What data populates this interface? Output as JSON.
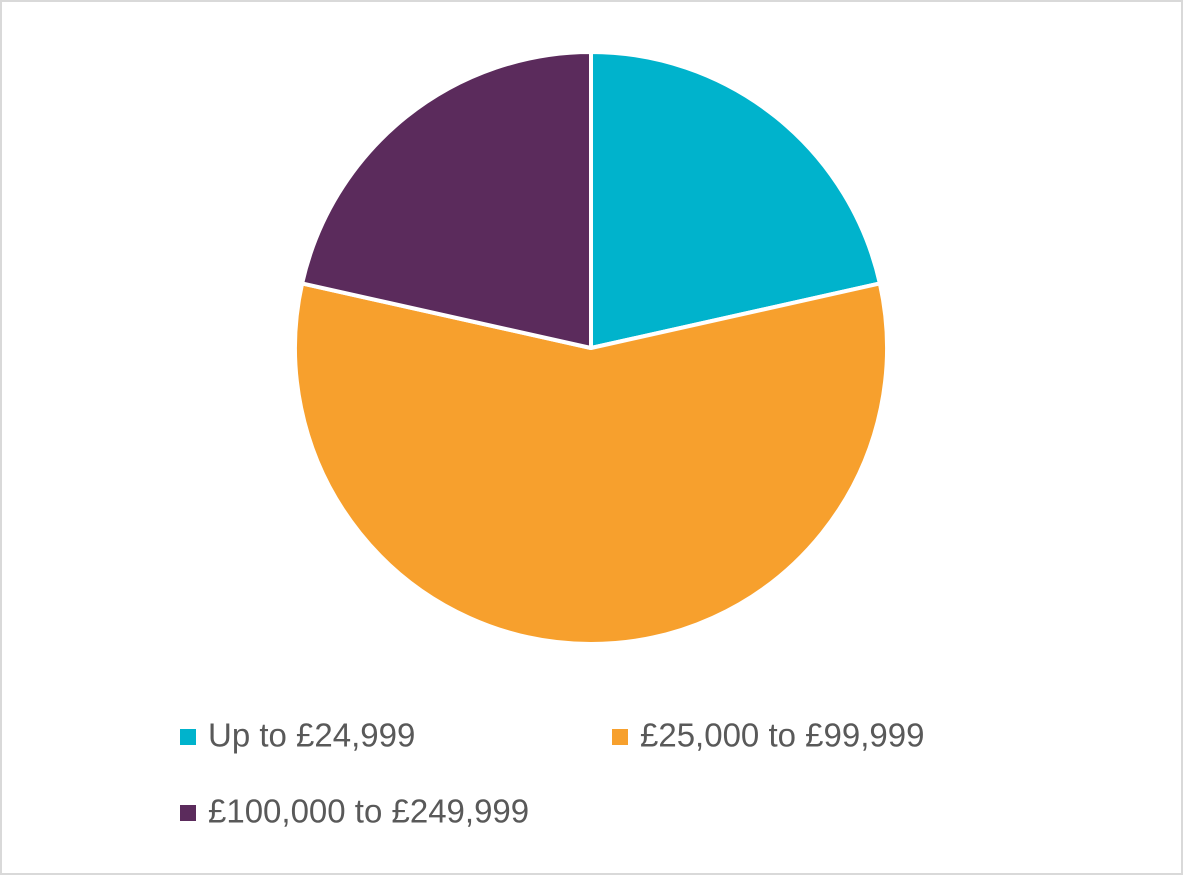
{
  "chart_data": {
    "type": "pie",
    "series": [
      {
        "name": "Up to £24,999",
        "color": "#00b3cc",
        "values": [
          21.5
        ]
      },
      {
        "name": "£25,000 to £99,999",
        "color": "#f7a02d",
        "values": [
          57
        ]
      },
      {
        "name": "£100,000 to £249,999",
        "color": "#5b2b5c",
        "values": [
          21.5
        ]
      }
    ],
    "legend": "bottom"
  }
}
